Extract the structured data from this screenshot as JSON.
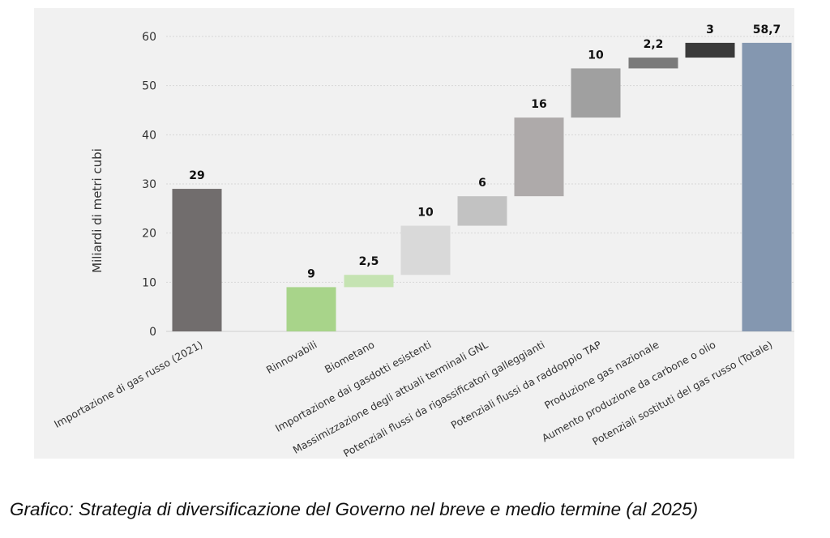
{
  "caption": "Grafico: Strategia di diversificazione del Governo nel breve e medio termine (al 2025)",
  "chart_data": {
    "type": "bar",
    "subtype": "waterfall",
    "title": "",
    "ylabel": "Miliardi di metri cubi",
    "ylim": [
      0,
      60
    ],
    "yticks": [
      0,
      10,
      20,
      30,
      40,
      50,
      60
    ],
    "grid": true,
    "categories": [
      "Importazione di gas russo (2021)",
      "Rinnovabili",
      "Biometano",
      "Importazione dai gasdotti esistenti",
      "Massimizzazione degli attuali terminali GNL",
      "Potenziali flussi da rigassificatori galleggianti",
      "Potenziali flussi da raddoppio TAP",
      "Produzione gas nazionale",
      "Aumento produzione da carbone o olio",
      "Potenziali sostituti del gas russo (Totale)"
    ],
    "bars": [
      {
        "base": 0,
        "value": 29,
        "label": "29",
        "color": "#716d6d"
      },
      {
        "base": 0,
        "value": 9,
        "label": "9",
        "color": "#a8d48a"
      },
      {
        "base": 9,
        "value": 2.5,
        "label": "2,5",
        "color": "#c5e3b2"
      },
      {
        "base": 11.5,
        "value": 10,
        "label": "10",
        "color": "#d9d9d9"
      },
      {
        "base": 21.5,
        "value": 6,
        "label": "6",
        "color": "#c2c2c2"
      },
      {
        "base": 27.5,
        "value": 16,
        "label": "16",
        "color": "#aeaaaa"
      },
      {
        "base": 43.5,
        "value": 10,
        "label": "10",
        "color": "#a0a0a0"
      },
      {
        "base": 53.5,
        "value": 2.2,
        "label": "2,2",
        "color": "#7a7a7a"
      },
      {
        "base": 55.7,
        "value": 3,
        "label": "3",
        "color": "#3a3a3a"
      },
      {
        "base": 0,
        "value": 58.7,
        "label": "58,7",
        "color": "#8497b0"
      }
    ]
  }
}
